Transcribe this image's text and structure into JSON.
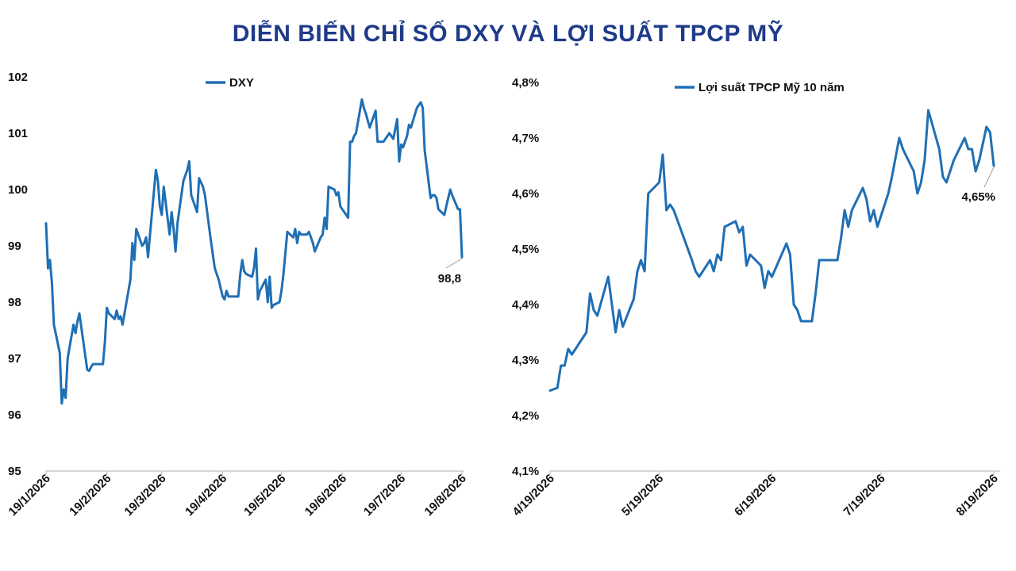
{
  "title": "DIỄN BIẾN CHỈ SỐ DXY VÀ LỢI SUẤT TPCP MỸ",
  "colors": {
    "series": "#1f6fb4",
    "title": "#1f3a8a",
    "axis": "#bfbfbf"
  },
  "chart_data": [
    {
      "type": "line",
      "title": "",
      "legend": "top-center",
      "grid": false,
      "ylim": [
        95,
        102
      ],
      "yticks": [
        95,
        96,
        97,
        98,
        99,
        100,
        101,
        102
      ],
      "ytick_labels": [
        "95",
        "96",
        "97",
        "98",
        "99",
        "100",
        "101",
        "102"
      ],
      "xlim": [
        "2026-01-19",
        "2026-08-19"
      ],
      "xticks": [
        "2026-01-19",
        "2026-02-19",
        "2026-03-19",
        "2026-04-19",
        "2026-05-19",
        "2026-06-19",
        "2026-07-19",
        "2026-08-19"
      ],
      "xtick_labels": [
        "19/1/2026",
        "19/2/2026",
        "19/3/2026",
        "19/4/2026",
        "19/5/2026",
        "19/6/2026",
        "19/7/2026",
        "19/8/2026"
      ],
      "end_label": "98,8",
      "series": [
        {
          "name": "DXY",
          "points": [
            [
              "2026-01-19",
              99.4
            ],
            [
              "2026-01-20",
              98.6
            ],
            [
              "2026-01-21",
              98.75
            ],
            [
              "2026-01-22",
              98.35
            ],
            [
              "2026-01-23",
              97.6
            ],
            [
              "2026-01-26",
              97.1
            ],
            [
              "2026-01-27",
              96.2
            ],
            [
              "2026-01-28",
              96.45
            ],
            [
              "2026-01-29",
              96.3
            ],
            [
              "2026-01-30",
              97.0
            ],
            [
              "2026-02-02",
              97.6
            ],
            [
              "2026-02-03",
              97.45
            ],
            [
              "2026-02-04",
              97.65
            ],
            [
              "2026-02-05",
              97.8
            ],
            [
              "2026-02-09",
              96.8
            ],
            [
              "2026-02-10",
              96.78
            ],
            [
              "2026-02-11",
              96.85
            ],
            [
              "2026-02-12",
              96.9
            ],
            [
              "2026-02-17",
              96.9
            ],
            [
              "2026-02-18",
              97.3
            ],
            [
              "2026-02-19",
              97.9
            ],
            [
              "2026-02-20",
              97.8
            ],
            [
              "2026-02-23",
              97.7
            ],
            [
              "2026-02-24",
              97.85
            ],
            [
              "2026-02-25",
              97.7
            ],
            [
              "2026-02-26",
              97.75
            ],
            [
              "2026-02-27",
              97.6
            ],
            [
              "2026-03-02",
              98.2
            ],
            [
              "2026-03-03",
              98.4
            ],
            [
              "2026-03-04",
              99.05
            ],
            [
              "2026-03-05",
              98.75
            ],
            [
              "2026-03-06",
              99.3
            ],
            [
              "2026-03-09",
              99.0
            ],
            [
              "2026-03-10",
              99.05
            ],
            [
              "2026-03-11",
              99.15
            ],
            [
              "2026-03-12",
              98.8
            ],
            [
              "2026-03-13",
              99.2
            ],
            [
              "2026-03-16",
              100.35
            ],
            [
              "2026-03-17",
              100.15
            ],
            [
              "2026-03-18",
              99.7
            ],
            [
              "2026-03-19",
              99.55
            ],
            [
              "2026-03-20",
              100.05
            ],
            [
              "2026-03-23",
              99.2
            ],
            [
              "2026-03-24",
              99.6
            ],
            [
              "2026-03-25",
              99.3
            ],
            [
              "2026-03-26",
              98.9
            ],
            [
              "2026-03-27",
              99.4
            ],
            [
              "2026-03-30",
              100.15
            ],
            [
              "2026-04-01",
              100.35
            ],
            [
              "2026-04-02",
              100.5
            ],
            [
              "2026-04-03",
              99.9
            ],
            [
              "2026-04-06",
              99.6
            ],
            [
              "2026-04-07",
              100.2
            ],
            [
              "2026-04-09",
              100.05
            ],
            [
              "2026-04-10",
              99.9
            ],
            [
              "2026-04-13",
              99.1
            ],
            [
              "2026-04-14",
              98.85
            ],
            [
              "2026-04-15",
              98.6
            ],
            [
              "2026-04-17",
              98.4
            ],
            [
              "2026-04-18",
              98.25
            ],
            [
              "2026-04-19",
              98.1
            ],
            [
              "2026-04-20",
              98.05
            ],
            [
              "2026-04-21",
              98.2
            ],
            [
              "2026-04-22",
              98.1
            ],
            [
              "2026-04-23",
              98.1
            ],
            [
              "2026-04-27",
              98.1
            ],
            [
              "2026-04-28",
              98.5
            ],
            [
              "2026-04-29",
              98.75
            ],
            [
              "2026-04-30",
              98.55
            ],
            [
              "2026-05-01",
              98.5
            ],
            [
              "2026-05-04",
              98.45
            ],
            [
              "2026-05-05",
              98.6
            ],
            [
              "2026-05-06",
              98.95
            ],
            [
              "2026-05-07",
              98.05
            ],
            [
              "2026-05-08",
              98.2
            ],
            [
              "2026-05-11",
              98.4
            ],
            [
              "2026-05-12",
              98.0
            ],
            [
              "2026-05-13",
              98.45
            ],
            [
              "2026-05-14",
              97.9
            ],
            [
              "2026-05-15",
              97.95
            ],
            [
              "2026-05-18",
              98.0
            ],
            [
              "2026-05-19",
              98.2
            ],
            [
              "2026-05-20",
              98.5
            ],
            [
              "2026-05-22",
              99.25
            ],
            [
              "2026-05-25",
              99.15
            ],
            [
              "2026-05-26",
              99.3
            ],
            [
              "2026-05-27",
              99.05
            ],
            [
              "2026-05-28",
              99.25
            ],
            [
              "2026-05-29",
              99.2
            ],
            [
              "2026-06-01",
              99.2
            ],
            [
              "2026-06-02",
              99.25
            ],
            [
              "2026-06-03",
              99.15
            ],
            [
              "2026-06-04",
              99.05
            ],
            [
              "2026-06-05",
              98.9
            ],
            [
              "2026-06-08",
              99.15
            ],
            [
              "2026-06-09",
              99.2
            ],
            [
              "2026-06-10",
              99.5
            ],
            [
              "2026-06-11",
              99.3
            ],
            [
              "2026-06-12",
              100.05
            ],
            [
              "2026-06-15",
              100.0
            ],
            [
              "2026-06-16",
              99.9
            ],
            [
              "2026-06-17",
              99.95
            ],
            [
              "2026-06-18",
              99.7
            ],
            [
              "2026-06-19",
              99.65
            ],
            [
              "2026-06-22",
              99.5
            ],
            [
              "2026-06-23",
              100.85
            ],
            [
              "2026-06-24",
              100.85
            ],
            [
              "2026-06-25",
              100.95
            ],
            [
              "2026-06-26",
              101.0
            ],
            [
              "2026-06-29",
              101.6
            ],
            [
              "2026-06-30",
              101.45
            ],
            [
              "2026-07-01",
              101.35
            ],
            [
              "2026-07-03",
              101.1
            ],
            [
              "2026-07-06",
              101.4
            ],
            [
              "2026-07-07",
              100.85
            ],
            [
              "2026-07-08",
              100.85
            ],
            [
              "2026-07-09",
              100.85
            ],
            [
              "2026-07-10",
              100.85
            ],
            [
              "2026-07-13",
              101.0
            ],
            [
              "2026-07-14",
              100.95
            ],
            [
              "2026-07-15",
              100.9
            ],
            [
              "2026-07-17",
              101.25
            ],
            [
              "2026-07-18",
              100.5
            ],
            [
              "2026-07-19",
              100.8
            ],
            [
              "2026-07-20",
              100.75
            ],
            [
              "2026-07-21",
              100.85
            ],
            [
              "2026-07-22",
              100.95
            ],
            [
              "2026-07-23",
              101.15
            ],
            [
              "2026-07-24",
              101.1
            ],
            [
              "2026-07-27",
              101.45
            ],
            [
              "2026-07-28",
              101.5
            ],
            [
              "2026-07-29",
              101.55
            ],
            [
              "2026-07-30",
              101.45
            ],
            [
              "2026-07-31",
              100.7
            ],
            [
              "2026-08-03",
              99.85
            ],
            [
              "2026-08-04",
              99.9
            ],
            [
              "2026-08-05",
              99.9
            ],
            [
              "2026-08-06",
              99.85
            ],
            [
              "2026-08-07",
              99.65
            ],
            [
              "2026-08-10",
              99.55
            ],
            [
              "2026-08-11",
              99.7
            ],
            [
              "2026-08-12",
              99.85
            ],
            [
              "2026-08-13",
              100.0
            ],
            [
              "2026-08-14",
              99.9
            ],
            [
              "2026-08-17",
              99.65
            ],
            [
              "2026-08-18",
              99.65
            ],
            [
              "2026-08-19",
              98.8
            ]
          ]
        }
      ]
    },
    {
      "type": "line",
      "title": "",
      "legend": "top-center",
      "grid": false,
      "ylim": [
        4.1,
        4.8
      ],
      "yticks": [
        4.1,
        4.2,
        4.3,
        4.4,
        4.5,
        4.6,
        4.7,
        4.8
      ],
      "ytick_labels": [
        "4,1%",
        "4,2%",
        "4,3%",
        "4,4%",
        "4,5%",
        "4,6%",
        "4,7%",
        "4,8%"
      ],
      "xlim": [
        "2026-04-19",
        "2026-08-19"
      ],
      "xticks": [
        "2026-04-19",
        "2026-05-19",
        "2026-06-19",
        "2026-07-19",
        "2026-08-19"
      ],
      "xtick_labels": [
        "4/19/2026",
        "5/19/2026",
        "6/19/2026",
        "7/19/2026",
        "8/19/2026"
      ],
      "end_label": "4,65%",
      "series": [
        {
          "name": "Lợi suất TPCP Mỹ 10 năm",
          "points": [
            [
              "2026-04-19",
              4.245
            ],
            [
              "2026-04-21",
              4.25
            ],
            [
              "2026-04-22",
              4.29
            ],
            [
              "2026-04-23",
              4.29
            ],
            [
              "2026-04-24",
              4.32
            ],
            [
              "2026-04-25",
              4.31
            ],
            [
              "2026-04-29",
              4.35
            ],
            [
              "2026-04-30",
              4.42
            ],
            [
              "2026-05-01",
              4.39
            ],
            [
              "2026-05-02",
              4.38
            ],
            [
              "2026-05-05",
              4.45
            ],
            [
              "2026-05-07",
              4.35
            ],
            [
              "2026-05-08",
              4.39
            ],
            [
              "2026-05-09",
              4.36
            ],
            [
              "2026-05-12",
              4.41
            ],
            [
              "2026-05-13",
              4.46
            ],
            [
              "2026-05-14",
              4.48
            ],
            [
              "2026-05-15",
              4.46
            ],
            [
              "2026-05-16",
              4.6
            ],
            [
              "2026-05-19",
              4.62
            ],
            [
              "2026-05-20",
              4.67
            ],
            [
              "2026-05-21",
              4.57
            ],
            [
              "2026-05-22",
              4.58
            ],
            [
              "2026-05-23",
              4.57
            ],
            [
              "2026-05-28",
              4.48
            ],
            [
              "2026-05-29",
              4.46
            ],
            [
              "2026-05-30",
              4.45
            ],
            [
              "2026-06-02",
              4.48
            ],
            [
              "2026-06-03",
              4.46
            ],
            [
              "2026-06-04",
              4.49
            ],
            [
              "2026-06-05",
              4.48
            ],
            [
              "2026-06-06",
              4.54
            ],
            [
              "2026-06-09",
              4.55
            ],
            [
              "2026-06-10",
              4.53
            ],
            [
              "2026-06-11",
              4.54
            ],
            [
              "2026-06-12",
              4.47
            ],
            [
              "2026-06-13",
              4.49
            ],
            [
              "2026-06-16",
              4.47
            ],
            [
              "2026-06-17",
              4.43
            ],
            [
              "2026-06-18",
              4.46
            ],
            [
              "2026-06-19",
              4.45
            ],
            [
              "2026-06-23",
              4.51
            ],
            [
              "2026-06-24",
              4.49
            ],
            [
              "2026-06-25",
              4.4
            ],
            [
              "2026-06-26",
              4.39
            ],
            [
              "2026-06-27",
              4.37
            ],
            [
              "2026-06-30",
              4.37
            ],
            [
              "2026-07-01",
              4.42
            ],
            [
              "2026-07-02",
              4.48
            ],
            [
              "2026-07-07",
              4.48
            ],
            [
              "2026-07-08",
              4.52
            ],
            [
              "2026-07-09",
              4.57
            ],
            [
              "2026-07-10",
              4.54
            ],
            [
              "2026-07-11",
              4.57
            ],
            [
              "2026-07-14",
              4.61
            ],
            [
              "2026-07-15",
              4.59
            ],
            [
              "2026-07-16",
              4.55
            ],
            [
              "2026-07-17",
              4.57
            ],
            [
              "2026-07-18",
              4.54
            ],
            [
              "2026-07-21",
              4.6
            ],
            [
              "2026-07-22",
              4.63
            ],
            [
              "2026-07-24",
              4.7
            ],
            [
              "2026-07-25",
              4.68
            ],
            [
              "2026-07-28",
              4.64
            ],
            [
              "2026-07-29",
              4.6
            ],
            [
              "2026-07-30",
              4.62
            ],
            [
              "2026-07-31",
              4.66
            ],
            [
              "2026-08-01",
              4.75
            ],
            [
              "2026-08-04",
              4.68
            ],
            [
              "2026-08-05",
              4.63
            ],
            [
              "2026-08-06",
              4.62
            ],
            [
              "2026-08-08",
              4.66
            ],
            [
              "2026-08-11",
              4.7
            ],
            [
              "2026-08-12",
              4.68
            ],
            [
              "2026-08-13",
              4.68
            ],
            [
              "2026-08-14",
              4.64
            ],
            [
              "2026-08-15",
              4.66
            ],
            [
              "2026-08-17",
              4.72
            ],
            [
              "2026-08-18",
              4.71
            ],
            [
              "2026-08-19",
              4.65
            ]
          ]
        }
      ]
    }
  ]
}
